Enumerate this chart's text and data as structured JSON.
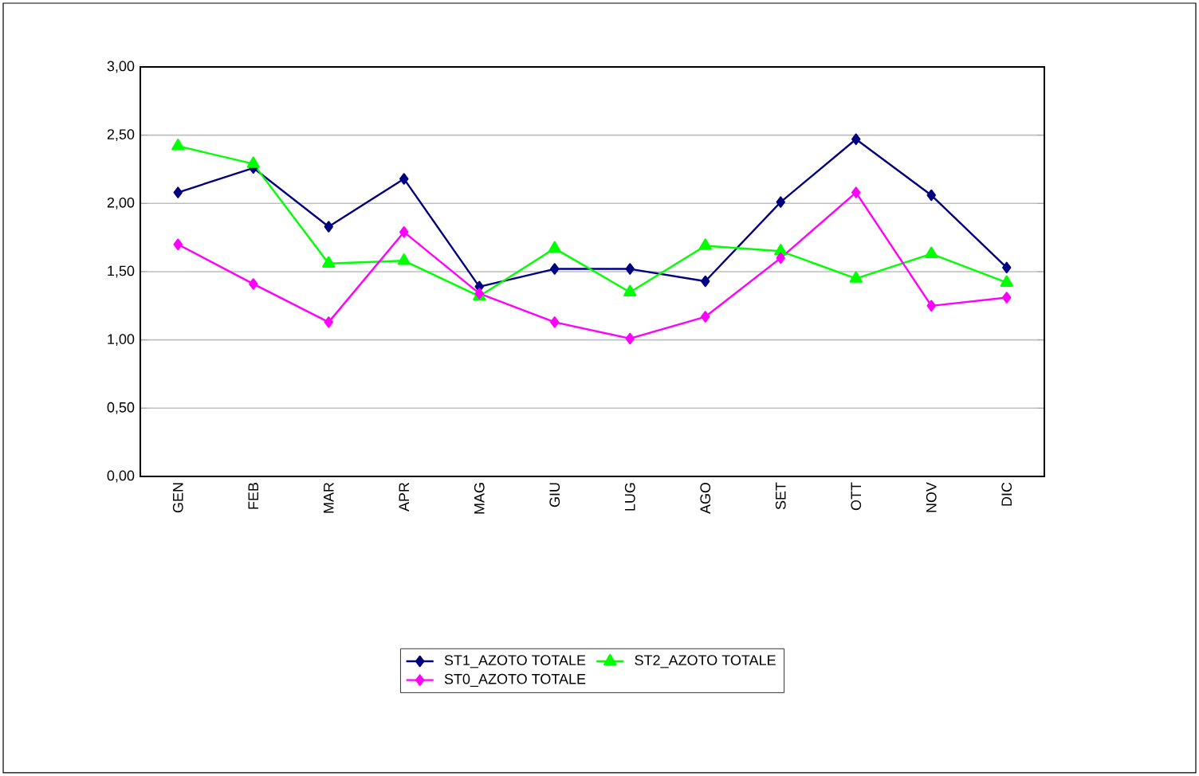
{
  "chart_data": {
    "type": "line",
    "categories": [
      "GEN",
      "FEB",
      "MAR",
      "APR",
      "MAG",
      "GIU",
      "LUG",
      "AGO",
      "SET",
      "OTT",
      "NOV",
      "DIC"
    ],
    "series": [
      {
        "name": "ST1_AZOTO TOTALE",
        "color": "#000080",
        "marker": "diamond",
        "values": [
          2.08,
          2.26,
          1.83,
          2.18,
          1.39,
          1.52,
          1.52,
          1.43,
          2.01,
          2.47,
          2.06,
          1.53
        ]
      },
      {
        "name": "ST2_AZOTO TOTALE",
        "color": "#00ff00",
        "marker": "triangle",
        "values": [
          2.42,
          2.29,
          1.56,
          1.58,
          1.32,
          1.67,
          1.35,
          1.69,
          1.65,
          1.45,
          1.63,
          1.42
        ]
      },
      {
        "name": "ST0_AZOTO TOTALE",
        "color": "#ff00ff",
        "marker": "diamond",
        "values": [
          1.7,
          1.41,
          1.13,
          1.79,
          1.34,
          1.13,
          1.01,
          1.17,
          1.6,
          2.08,
          1.25,
          1.31
        ]
      }
    ],
    "ylim": [
      0,
      3
    ],
    "yticks": [
      {
        "value": 0,
        "label": "0,00"
      },
      {
        "value": 0.5,
        "label": "0,50"
      },
      {
        "value": 1,
        "label": "1,00"
      },
      {
        "value": 1.5,
        "label": "1,50"
      },
      {
        "value": 2,
        "label": "2,00"
      },
      {
        "value": 2.5,
        "label": "2,50"
      },
      {
        "value": 3,
        "label": "3,00"
      }
    ],
    "grid": "y",
    "legend": "bottom",
    "line_style": "solid"
  }
}
